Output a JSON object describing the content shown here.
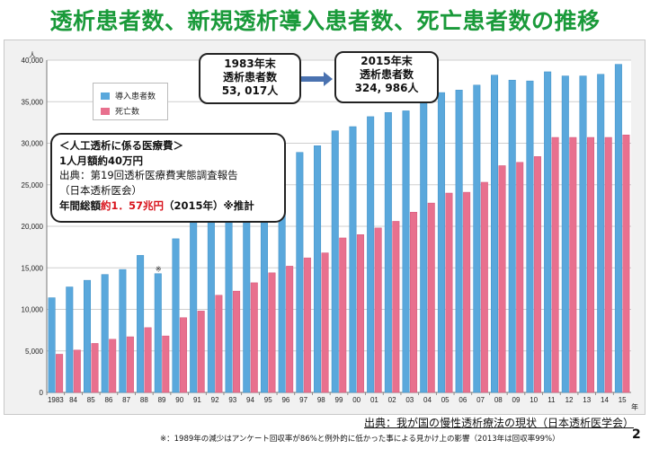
{
  "title": "透析患者数、新規透析導入患者数、死亡患者数の推移",
  "callout_1983": {
    "line1": "1983年末",
    "line2": "透析患者数",
    "line3": "53, 017人"
  },
  "callout_2015": {
    "line1": "2015年末",
    "line2": "透析患者数",
    "line3": "324, 986人"
  },
  "cost_box": {
    "heading": "＜人工透析に係る医療費＞",
    "line1": "1人月額約40万円",
    "line2": "出典：第19回透析医療費実態調査報告",
    "line3": "（日本透析医会）",
    "line4_pre": "年間総額",
    "line4_red": "約1．57兆円",
    "line4_post": "（2015年）※推計"
  },
  "source": "出典：我が国の慢性透析療法の現状（日本透析医学会）",
  "footnote": "※：1989年の減少はアンケート回収率が86%と例外的に低かった事による見かけ上の影響（2013年は回収率99%）",
  "page_number": "2",
  "colors": {
    "series1": "#5aa8dc",
    "series2": "#e8708e",
    "title": "#1a9a3a",
    "red_text": "#d8121b"
  },
  "chart_data": {
    "type": "bar",
    "yunit": "人",
    "xunit": "年",
    "ylim": [
      0,
      40000
    ],
    "yticks": [
      "0",
      "5,000",
      "10,000",
      "15,000",
      "20,000",
      "25,000",
      "30,000",
      "35,000",
      "40,000"
    ],
    "grid": true,
    "legend_position": "top-left",
    "categories": [
      "1983",
      "84",
      "85",
      "86",
      "87",
      "88",
      "89",
      "90",
      "91",
      "92",
      "93",
      "94",
      "95",
      "96",
      "97",
      "98",
      "99",
      "00",
      "01",
      "02",
      "03",
      "04",
      "05",
      "06",
      "07",
      "08",
      "09",
      "10",
      "11",
      "12",
      "13",
      "14",
      "15"
    ],
    "annotation": {
      "category": "89",
      "text": "※"
    },
    "series": [
      {
        "name": "導入患者数",
        "values": [
          11400,
          12700,
          13500,
          14200,
          14800,
          16500,
          14300,
          18500,
          20900,
          22500,
          24500,
          25600,
          26400,
          28400,
          28900,
          29700,
          31500,
          32000,
          33200,
          33700,
          33900,
          35100,
          36100,
          36400,
          37000,
          38200,
          37600,
          37500,
          38600,
          38100,
          38100,
          38300,
          39500
        ]
      },
      {
        "name": "死亡数",
        "values": [
          4600,
          5100,
          5900,
          6400,
          6700,
          7800,
          6800,
          9000,
          9800,
          11700,
          12200,
          13200,
          14400,
          15200,
          16200,
          16800,
          18600,
          19000,
          19800,
          20600,
          21700,
          22800,
          24000,
          24100,
          25300,
          27300,
          27700,
          28400,
          30700,
          30700,
          30700,
          30700,
          31000
        ]
      }
    ]
  }
}
